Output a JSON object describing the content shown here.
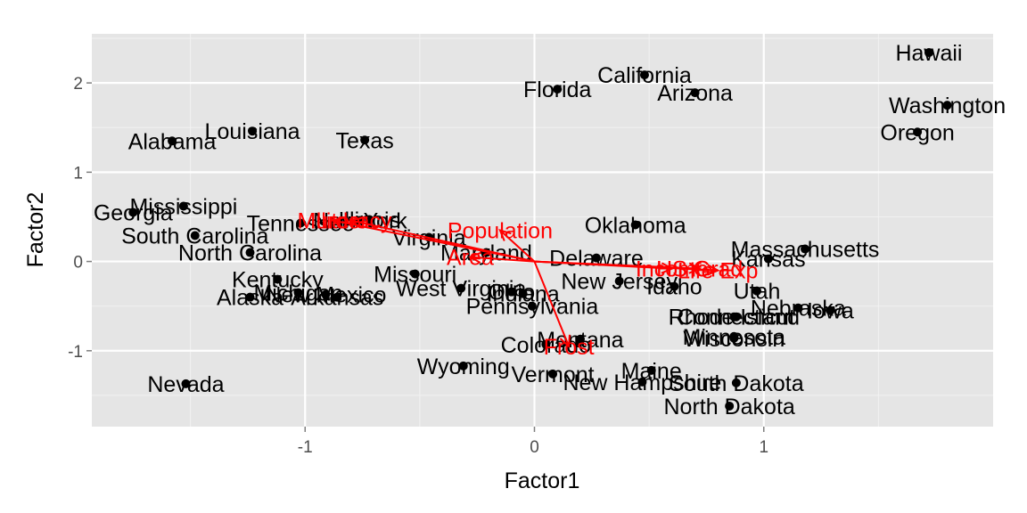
{
  "chart_data": {
    "type": "scatter",
    "title": "",
    "xlabel": "Factor1",
    "ylabel": "Factor2",
    "xlim": [
      -1.93,
      2.0
    ],
    "ylim": [
      -1.85,
      2.55
    ],
    "x_ticks": [
      -1,
      0,
      1
    ],
    "x_tick_labels": [
      "-1",
      "0",
      "1"
    ],
    "y_ticks": [
      -1,
      0,
      1,
      2
    ],
    "y_tick_labels": [
      "-1",
      "0",
      "1",
      "2"
    ],
    "grid": true,
    "colors": {
      "panel": "#e5e5e5",
      "grid_major": "#ffffff",
      "grid_minor": "#f2f2f2",
      "points": "#000000",
      "labels": "#000000",
      "arrows": "#ff0000"
    },
    "points": [
      {
        "name": "Alabama",
        "x": -1.58,
        "y": 1.35
      },
      {
        "name": "Alaska",
        "x": -1.24,
        "y": -0.4
      },
      {
        "name": "Arizona",
        "x": 0.7,
        "y": 1.89
      },
      {
        "name": "Arkansas",
        "x": -0.86,
        "y": -0.4
      },
      {
        "name": "California",
        "x": 0.48,
        "y": 2.09
      },
      {
        "name": "Colorado",
        "x": 0.05,
        "y": -0.93
      },
      {
        "name": "Connecticut",
        "x": 0.88,
        "y": -0.62
      },
      {
        "name": "Delaware",
        "x": 0.27,
        "y": 0.04
      },
      {
        "name": "Florida",
        "x": 0.1,
        "y": 1.93
      },
      {
        "name": "Georgia",
        "x": -1.75,
        "y": 0.55
      },
      {
        "name": "Hawaii",
        "x": 1.72,
        "y": 2.34
      },
      {
        "name": "Idaho",
        "x": 0.61,
        "y": -0.28
      },
      {
        "name": "Illinois",
        "x": -0.72,
        "y": 0.47
      },
      {
        "name": "Indiana",
        "x": -0.05,
        "y": -0.36
      },
      {
        "name": "Iowa",
        "x": 1.29,
        "y": -0.55
      },
      {
        "name": "Kansas",
        "x": 1.02,
        "y": 0.03
      },
      {
        "name": "Kentucky",
        "x": -1.12,
        "y": -0.2
      },
      {
        "name": "Louisiana",
        "x": -1.23,
        "y": 1.46
      },
      {
        "name": "Maine",
        "x": 0.51,
        "y": -1.22
      },
      {
        "name": "Maryland",
        "x": -0.21,
        "y": 0.1
      },
      {
        "name": "Massachusetts",
        "x": 1.18,
        "y": 0.14
      },
      {
        "name": "Michigan",
        "x": -1.03,
        "y": -0.35
      },
      {
        "name": "Minnesota",
        "x": 0.87,
        "y": -0.84
      },
      {
        "name": "Mississippi",
        "x": -1.53,
        "y": 0.62
      },
      {
        "name": "Missouri",
        "x": -0.52,
        "y": -0.14
      },
      {
        "name": "Montana",
        "x": 0.2,
        "y": -0.87
      },
      {
        "name": "Nebraska",
        "x": 1.15,
        "y": -0.52
      },
      {
        "name": "Nevada",
        "x": -1.52,
        "y": -1.37
      },
      {
        "name": "New Hampshire",
        "x": 0.47,
        "y": -1.35
      },
      {
        "name": "New Jersey",
        "x": 0.37,
        "y": -0.22
      },
      {
        "name": "New Mexico",
        "x": -0.91,
        "y": -0.37
      },
      {
        "name": "New York",
        "x": -0.76,
        "y": 0.46
      },
      {
        "name": "North Carolina",
        "x": -1.24,
        "y": 0.1
      },
      {
        "name": "North Dakota",
        "x": 0.85,
        "y": -1.62
      },
      {
        "name": "Ohio",
        "x": -0.1,
        "y": -0.34
      },
      {
        "name": "Oklahoma",
        "x": 0.44,
        "y": 0.41
      },
      {
        "name": "Oregon",
        "x": 1.67,
        "y": 1.45
      },
      {
        "name": "Pennsylvania",
        "x": -0.01,
        "y": -0.5
      },
      {
        "name": "Rhode Island",
        "x": 0.87,
        "y": -0.62
      },
      {
        "name": "South Carolina",
        "x": -1.48,
        "y": 0.29
      },
      {
        "name": "South Dakota",
        "x": 0.88,
        "y": -1.36
      },
      {
        "name": "Tennessee",
        "x": -1.02,
        "y": 0.43
      },
      {
        "name": "Texas",
        "x": -0.74,
        "y": 1.36
      },
      {
        "name": "Utah",
        "x": 0.97,
        "y": -0.33
      },
      {
        "name": "Vermont",
        "x": 0.08,
        "y": -1.26
      },
      {
        "name": "Virginia",
        "x": -0.46,
        "y": 0.27
      },
      {
        "name": "Washington",
        "x": 1.8,
        "y": 1.75
      },
      {
        "name": "West Virginia",
        "x": -0.32,
        "y": -0.3
      },
      {
        "name": "Wisconsin",
        "x": 0.87,
        "y": -0.86
      },
      {
        "name": "Wyoming",
        "x": -0.31,
        "y": -1.17
      }
    ],
    "vectors": [
      {
        "name": "Population",
        "x": -0.15,
        "y": 0.35
      },
      {
        "name": "Income",
        "x": 0.6,
        "y": -0.08
      },
      {
        "name": "Illiteracy",
        "x": -0.8,
        "y": 0.46
      },
      {
        "name": "Life Exp",
        "x": 0.8,
        "y": -0.1
      },
      {
        "name": "Murder",
        "x": -0.88,
        "y": 0.46
      },
      {
        "name": "HS Grad",
        "x": 0.72,
        "y": -0.08
      },
      {
        "name": "Frost",
        "x": 0.15,
        "y": -0.95
      },
      {
        "name": "Area",
        "x": -0.28,
        "y": 0.05
      }
    ]
  }
}
